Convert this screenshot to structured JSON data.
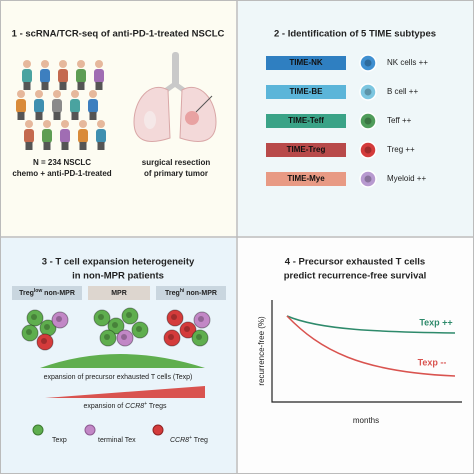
{
  "panel1": {
    "title": "1 - scRNA/TCR-seq of anti-PD-1-treated NSCLC",
    "cohort": [
      "N = 234 NSCLC",
      "chemo + anti-PD-1-treated"
    ],
    "sample": [
      "surgical resection",
      "of primary tumor"
    ]
  },
  "panel2": {
    "title": "2 - Identification of 5 TIME subtypes",
    "subtypes": [
      {
        "name": "TIME-NK",
        "cell": "NK cells ++"
      },
      {
        "name": "TIME-BE",
        "cell": "B cell ++"
      },
      {
        "name": "TIME-Teff",
        "cell": "Teff ++"
      },
      {
        "name": "TIME-Treg",
        "cell": "Treg ++"
      },
      {
        "name": "TIME-Mye",
        "cell": "Myeloid ++"
      }
    ]
  },
  "panel3": {
    "title": [
      "3 - T cell expansion heterogeneity",
      "in non-MPR patients"
    ],
    "groups": [
      {
        "main": "Treg",
        "sup": "low",
        "rest": " non-MPR"
      },
      {
        "main": "MPR"
      },
      {
        "main": "Treg",
        "sup": "hi",
        "rest": " non-MPR"
      }
    ],
    "texp_expansion": "expansion of precursor exhausted T cells (Texp)",
    "treg_expansion": {
      "pre": "expansion of ",
      "gene": "CCR8",
      "sup": "+",
      "post": " Tregs"
    },
    "legend": [
      {
        "label": "Texp"
      },
      {
        "label": "terminal Tex"
      },
      {
        "gene": "CCR8",
        "sup": "+",
        "label": " Treg"
      }
    ]
  },
  "panel4": {
    "title": [
      "4 - Precursor exhausted T cells",
      "predict recurrence-free survival"
    ],
    "y_label": "recurrence-free (%)",
    "x_label": "months",
    "high": "Texp ++",
    "low": "Texp --"
  }
}
